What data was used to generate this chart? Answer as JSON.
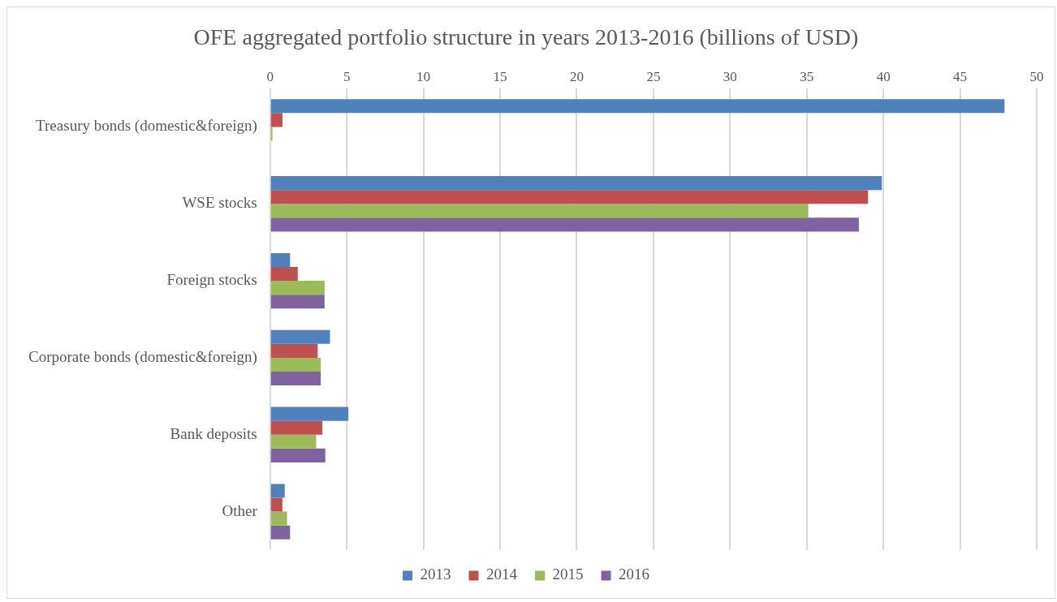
{
  "chart_data": {
    "type": "bar",
    "orientation": "horizontal",
    "title": "OFE aggregated portfolio structure in years 2013-2016 (billions of USD)",
    "categories": [
      "Treasury bonds (domestic&foreign)",
      "WSE stocks",
      "Foreign stocks",
      "Corporate bonds (domestic&foreign)",
      "Bank deposits",
      "Other"
    ],
    "series": [
      {
        "name": "2013",
        "color": "#4f81bd",
        "values": [
          47.9,
          39.9,
          1.3,
          3.9,
          5.1,
          0.95
        ]
      },
      {
        "name": "2014",
        "color": "#c0504d",
        "values": [
          0.8,
          39.0,
          1.8,
          3.1,
          3.4,
          0.8
        ]
      },
      {
        "name": "2015",
        "color": "#9bbb59",
        "values": [
          0.15,
          35.1,
          3.55,
          3.3,
          3.0,
          1.1
        ]
      },
      {
        "name": "2016",
        "color": "#8064a2",
        "values": [
          0,
          38.4,
          3.55,
          3.3,
          3.6,
          1.3
        ]
      }
    ],
    "xlim": [
      0,
      50
    ],
    "xticks": [
      0,
      5,
      10,
      15,
      20,
      25,
      30,
      35,
      40,
      45,
      50
    ],
    "grid": "x",
    "legend": "bottom"
  }
}
